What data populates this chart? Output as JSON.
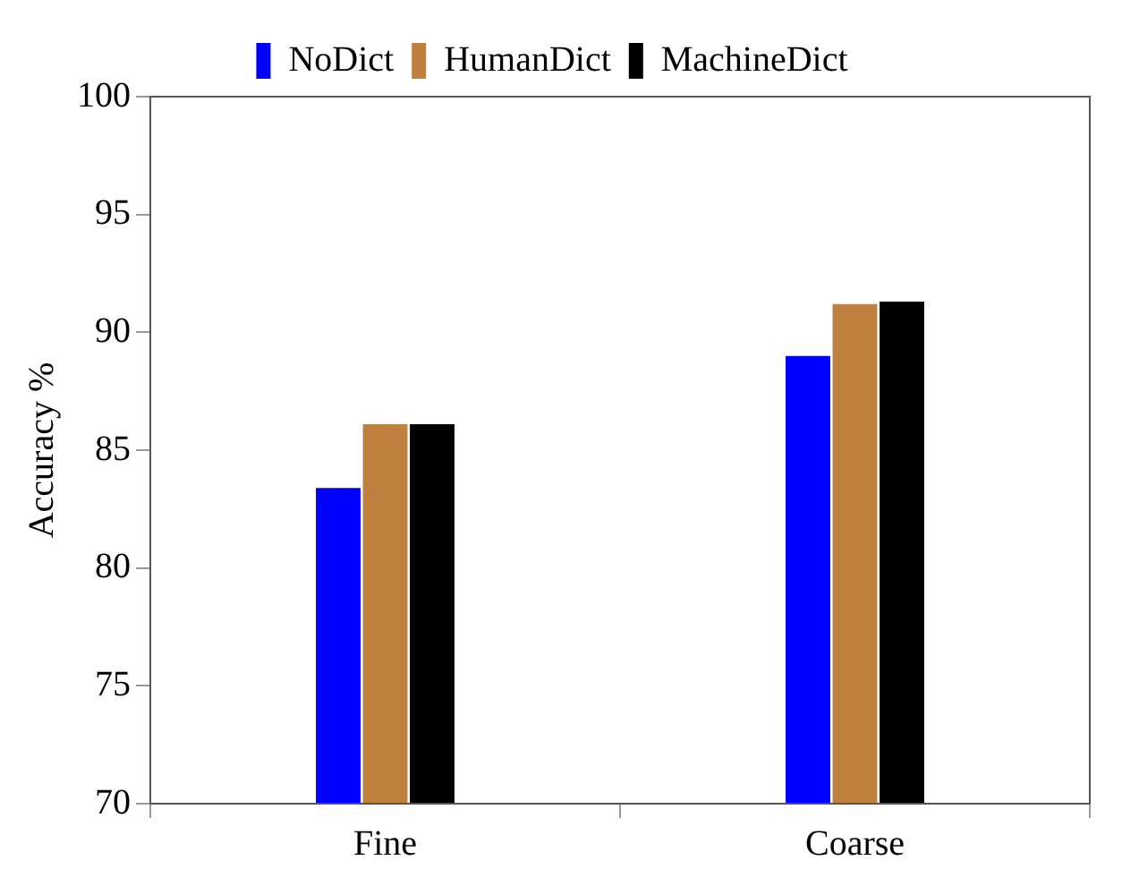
{
  "chart_data": {
    "type": "bar",
    "ylabel": "Accuracy %",
    "categories": [
      "Fine",
      "Coarse"
    ],
    "series": [
      {
        "name": "NoDict",
        "color": "#0000ff",
        "values": [
          83.4,
          89.0
        ]
      },
      {
        "name": "HumanDict",
        "color": "#bf8040",
        "values": [
          86.1,
          91.2
        ]
      },
      {
        "name": "MachineDict",
        "color": "#000000",
        "values": [
          86.1,
          91.3
        ]
      }
    ],
    "ylim": [
      70,
      100
    ],
    "yticks": [
      70,
      75,
      80,
      85,
      90,
      95,
      100
    ],
    "grid": false,
    "legend": "top"
  }
}
